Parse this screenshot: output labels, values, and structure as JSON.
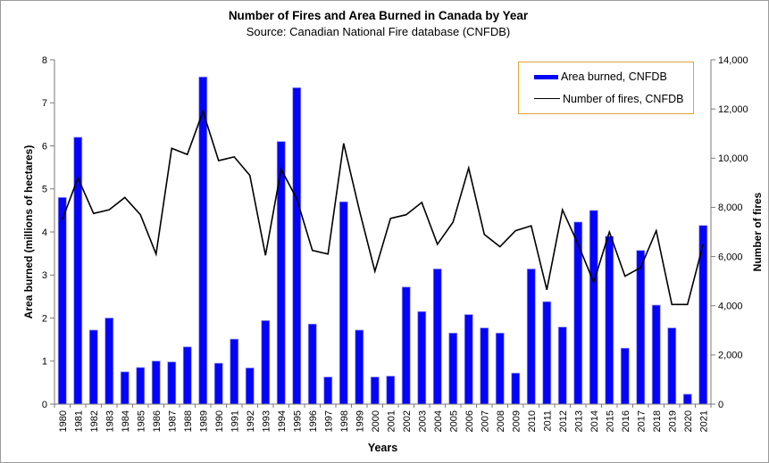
{
  "chart": {
    "title": "Number of Fires and Area Burned in Canada by Year",
    "subtitle": "Source: Canadian National Fire database (CNFDB)",
    "x_axis_title": "Years",
    "left_axis_title": "Area burned (millions of hectares)",
    "right_axis_title": "Number of fires",
    "legend": {
      "area_burned_label": "Area burned, CNFDB",
      "fires_label": "Number of fires, CNFDB",
      "border_color": "#dfa33c"
    },
    "colors": {
      "bar_fill": "#0404fa",
      "bar_edge": "#8f8fee",
      "line_stroke": "#000000",
      "axis_line": "#7a7a7a",
      "tick_text": "#000000"
    }
  },
  "chart_data": {
    "type": [
      "bar",
      "line"
    ],
    "categories": [
      1980,
      1981,
      1982,
      1983,
      1984,
      1985,
      1986,
      1987,
      1988,
      1989,
      1990,
      1991,
      1992,
      1993,
      1994,
      1995,
      1996,
      1997,
      1998,
      1999,
      2000,
      2001,
      2002,
      2003,
      2004,
      2005,
      2006,
      2007,
      2008,
      2009,
      2010,
      2011,
      2012,
      2013,
      2014,
      2015,
      2016,
      2017,
      2018,
      2019,
      2020,
      2021
    ],
    "series": [
      {
        "name": "Area burned, CNFDB",
        "type": "bar",
        "axis": "left",
        "units": "millions of hectares",
        "values": [
          4.8,
          6.2,
          1.72,
          2.0,
          0.75,
          0.85,
          1.0,
          0.98,
          1.33,
          7.6,
          0.95,
          1.51,
          0.84,
          1.94,
          6.1,
          7.35,
          1.86,
          0.63,
          4.7,
          1.72,
          0.63,
          0.65,
          2.72,
          2.15,
          3.14,
          1.65,
          2.08,
          1.77,
          1.65,
          0.72,
          3.14,
          2.38,
          1.79,
          4.23,
          4.5,
          3.9,
          1.3,
          3.57,
          2.3,
          1.77,
          0.23,
          4.15
        ]
      },
      {
        "name": "Number of fires, CNFDB",
        "type": "line",
        "axis": "right",
        "units": "fires",
        "values": [
          7500,
          9200,
          7750,
          7900,
          8400,
          7700,
          6100,
          10400,
          10150,
          11900,
          9900,
          10050,
          9300,
          6050,
          9550,
          8350,
          6250,
          6100,
          10600,
          7900,
          5400,
          7550,
          7700,
          8200,
          6500,
          7400,
          9600,
          6900,
          6400,
          7050,
          7250,
          4650,
          7900,
          6500,
          4950,
          7000,
          5200,
          5550,
          7050,
          4050,
          4050,
          6500
        ]
      }
    ],
    "axes": {
      "left": {
        "label": "Area burned (millions of hectares)",
        "min": 0,
        "max": 8,
        "step": 1,
        "tick_labels": [
          "0",
          "1",
          "2",
          "3",
          "4",
          "5",
          "6",
          "7",
          "8"
        ]
      },
      "right": {
        "label": "Number of fires",
        "min": 0,
        "max": 14000,
        "step": 2000,
        "tick_labels": [
          "0",
          "2,000",
          "4,000",
          "6,000",
          "8,000",
          "10,000",
          "12,000",
          "14,000"
        ]
      },
      "x": {
        "label": "Years"
      }
    },
    "grid": false,
    "legend_position": "top-right-inside"
  }
}
